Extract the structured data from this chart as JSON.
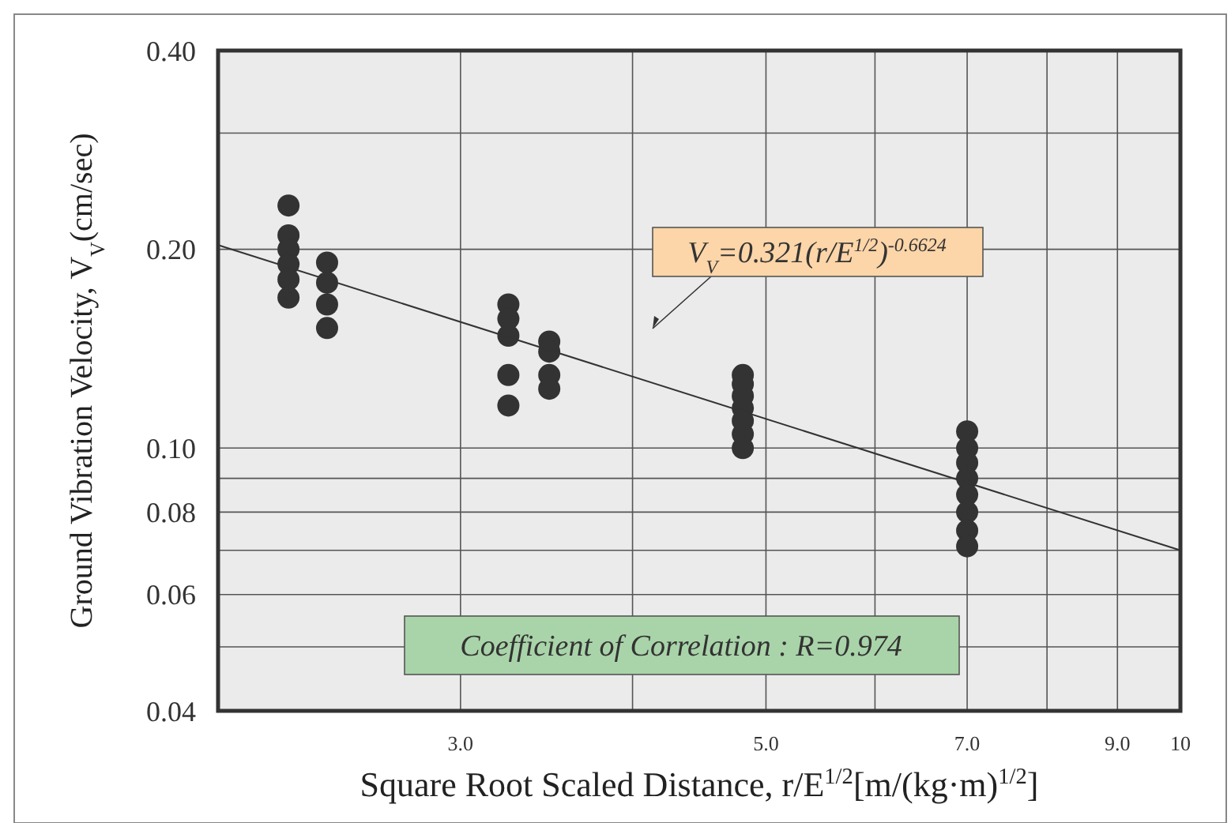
{
  "chart_data": {
    "type": "scatter",
    "xlabel": "Square Root Scaled Distance, r/E$^{1/2}$[m/(kg·m)$^{1/2}$]",
    "ylabel": "Ground Vibration Velocity, V$_{V}$(cm/sec)",
    "log": "xy",
    "grid": true,
    "marker": "circle",
    "xlim": [
      2,
      10
    ],
    "xticks": [
      {
        "value": 3,
        "label": "3.0"
      },
      {
        "value": 4,
        "label": null
      },
      {
        "value": 5,
        "label": "5.0"
      },
      {
        "value": 6,
        "label": null
      },
      {
        "value": 7,
        "label": "7.0"
      },
      {
        "value": 8,
        "label": null
      },
      {
        "value": 9,
        "label": "9.0"
      },
      10
    ],
    "ylim": [
      0.04,
      0.4
    ],
    "yticks": [
      {
        "value": 0.04,
        "label": "0.04"
      },
      {
        "value": 0.05,
        "label": null
      },
      {
        "value": 0.06,
        "label": "0.06"
      },
      {
        "value": 0.07,
        "label": null
      },
      {
        "value": 0.08,
        "label": "0.08"
      },
      {
        "value": 0.09,
        "label": null
      },
      {
        "value": 0.1,
        "label": "0.10"
      },
      {
        "value": 0.2,
        "label": "0.20"
      },
      {
        "value": 0.3,
        "label": null
      },
      {
        "value": 0.4,
        "label": "0.40"
      }
    ],
    "series": [
      {
        "color": "#333333",
        "x": [
          2.25,
          2.25,
          2.25,
          2.25,
          2.25,
          2.25,
          2.4,
          2.4,
          2.4,
          2.4,
          3.25,
          3.25,
          3.25,
          3.25,
          3.25,
          3.48,
          3.48,
          3.48,
          3.48,
          4.81,
          4.81,
          4.81,
          4.81,
          4.81,
          4.81,
          4.81,
          7,
          7,
          7,
          7,
          7,
          7,
          7,
          7
        ],
        "values": [
          0.233,
          0.21,
          0.2,
          0.19,
          0.18,
          0.169,
          0.191,
          0.178,
          0.165,
          0.152,
          0.165,
          0.157,
          0.148,
          0.129,
          0.116,
          0.145,
          0.14,
          0.129,
          0.123,
          0.129,
          0.125,
          0.12,
          0.115,
          0.11,
          0.105,
          0.1,
          0.106,
          0.1,
          0.095,
          0.09,
          0.085,
          0.08,
          0.075,
          0.071
        ]
      },
      {
        "type": "line",
        "color": "#333333",
        "marker": "none",
        "x": [
          2,
          10
        ],
        "values": [
          0.203,
          0.07
        ]
      }
    ],
    "annotations": [
      "V$_{V}$=0.321(r/E$^{1/2}$)$^{-0.6624}$",
      "Coefficient of Correlation : R=0.974"
    ]
  }
}
